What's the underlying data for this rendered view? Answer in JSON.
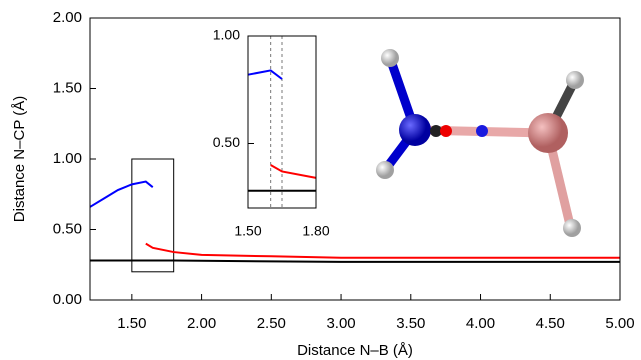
{
  "chart_data": [
    {
      "type": "line",
      "xlabel": "Distance N–B (Å)",
      "ylabel": "Distance N–CP (Å)",
      "xlim": [
        1.2,
        5.0
      ],
      "ylim": [
        0,
        2.0
      ],
      "xticks": [
        {
          "value": 1.5,
          "label": "1.50"
        },
        {
          "value": 2.0,
          "label": "2.00"
        },
        {
          "value": 2.5,
          "label": "2.50"
        },
        {
          "value": 3.0,
          "label": "3.00"
        },
        {
          "value": 3.5,
          "label": "3.50"
        },
        {
          "value": 4.0,
          "label": "4.00"
        },
        {
          "value": 4.5,
          "label": "4.50"
        },
        {
          "value": 5.0,
          "label": "5.00"
        }
      ],
      "yticks": [
        {
          "value": 0,
          "label": "0.00"
        },
        {
          "value": 0.5,
          "label": "0.50"
        },
        {
          "value": 1.0,
          "label": "1.00"
        },
        {
          "value": 1.5,
          "label": "1.50"
        },
        {
          "value": 2.0,
          "label": "2.00"
        }
      ],
      "zoom_box": {
        "x": [
          1.5,
          1.8
        ],
        "y": [
          0.2,
          1.0
        ]
      },
      "series": [
        {
          "color": "#0000ff",
          "x": [
            1.2,
            1.3,
            1.4,
            1.5,
            1.6,
            1.65
          ],
          "values": [
            0.66,
            0.72,
            0.78,
            0.82,
            0.84,
            0.8
          ]
        },
        {
          "color": "#ff0000",
          "x": [
            1.6,
            1.65,
            1.8,
            2.0,
            2.5,
            3.0,
            4.0,
            5.0
          ],
          "values": [
            0.4,
            0.37,
            0.34,
            0.32,
            0.31,
            0.3,
            0.3,
            0.3
          ]
        },
        {
          "color": "#000000",
          "x": [
            1.2,
            1.6,
            1.8,
            3.0,
            5.0
          ],
          "values": [
            0.28,
            0.28,
            0.28,
            0.27,
            0.27
          ]
        }
      ]
    },
    {
      "type": "line",
      "xlim": [
        1.5,
        1.8
      ],
      "ylim": [
        0.2,
        1.0
      ],
      "xticks": [
        {
          "value": 1.5,
          "label": "1.50"
        },
        {
          "value": 1.8,
          "label": "1.80"
        }
      ],
      "yticks": [
        {
          "value": 0.5,
          "label": "0.50"
        },
        {
          "value": 1.0,
          "label": "1.00"
        }
      ],
      "vlines": [
        1.6,
        1.65
      ],
      "series": [
        {
          "color": "#0000ff",
          "x": [
            1.5,
            1.6,
            1.65
          ],
          "values": [
            0.82,
            0.84,
            0.8
          ]
        },
        {
          "color": "#ff0000",
          "x": [
            1.6,
            1.65,
            1.8
          ],
          "values": [
            0.4,
            0.37,
            0.34
          ]
        },
        {
          "color": "#000000",
          "x": [
            1.5,
            1.8
          ],
          "values": [
            0.28,
            0.28
          ]
        }
      ]
    }
  ]
}
